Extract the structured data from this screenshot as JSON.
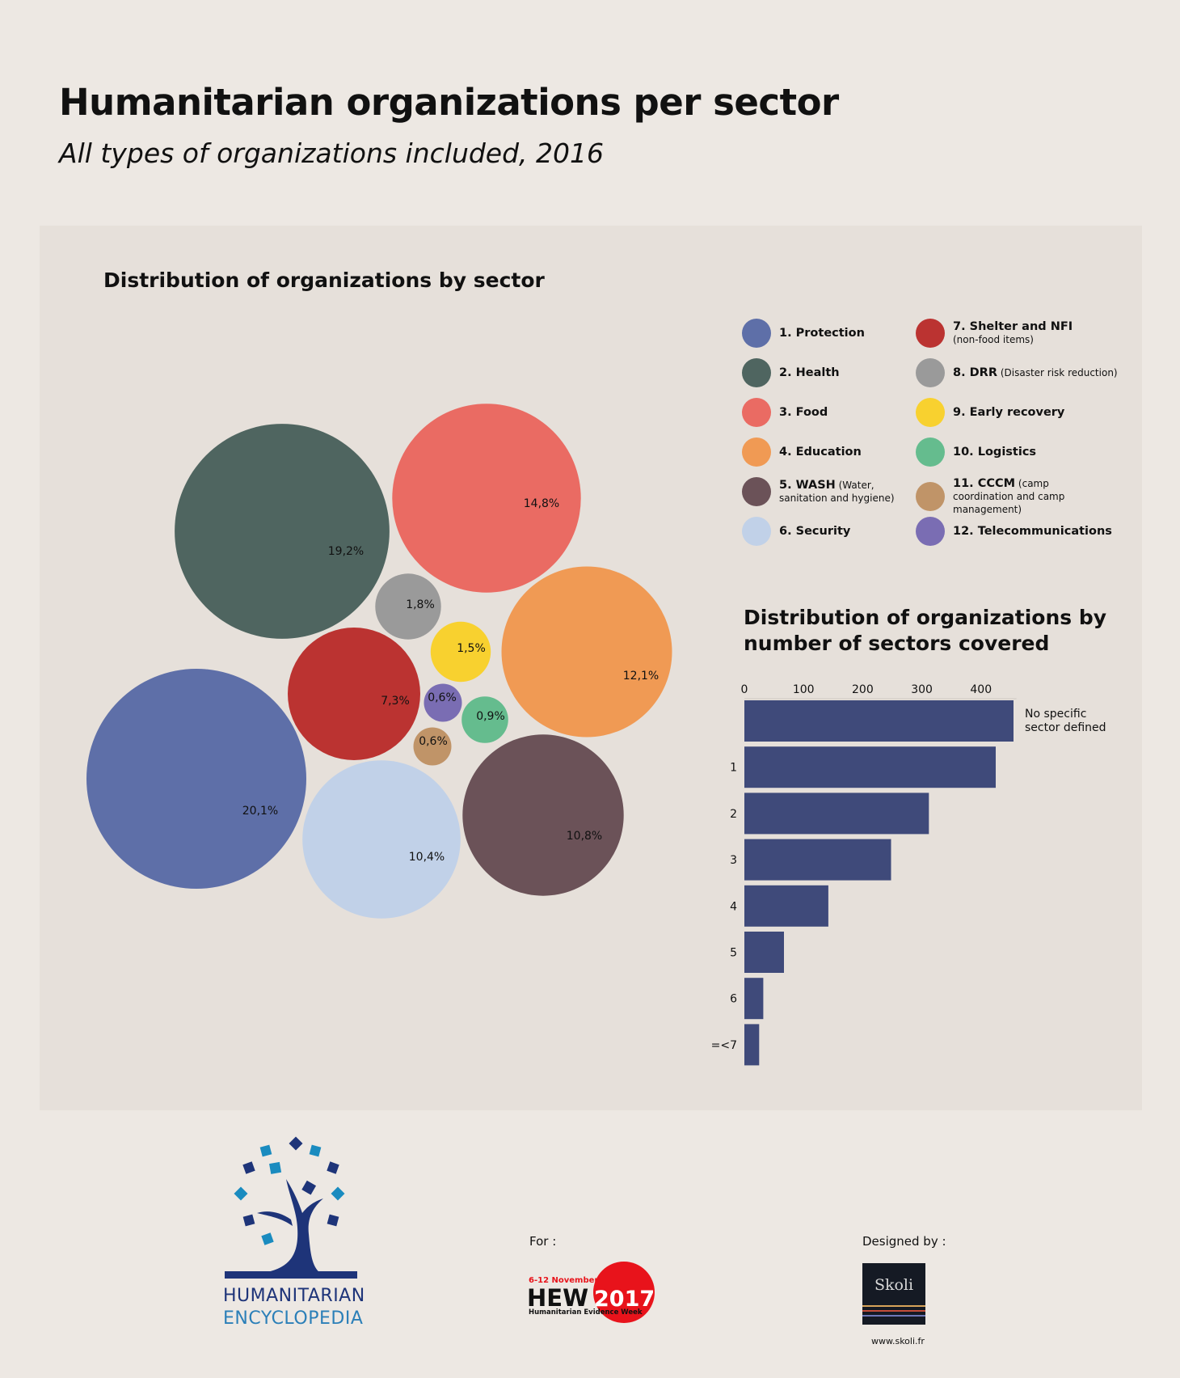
{
  "title": "Humanitarian organizations per sector",
  "subtitle": "All types of organizations included, 2016",
  "chart_data": [
    {
      "type": "bubble",
      "title": "Distribution of organizations by sector",
      "unit": "%",
      "series": [
        {
          "name": "1. Protection",
          "value": 20.1,
          "label": "20,1%",
          "color": "#5e6fa8"
        },
        {
          "name": "2. Health",
          "value": 19.2,
          "label": "19,2%",
          "color": "#4f6560"
        },
        {
          "name": "3. Food",
          "value": 14.8,
          "label": "14,8%",
          "color": "#ea6b63"
        },
        {
          "name": "4. Education",
          "value": 12.1,
          "label": "12,1%",
          "color": "#f09a54"
        },
        {
          "name": "5. WASH",
          "detail": "(Water, sanitation and hygiene)",
          "value": 10.8,
          "label": "10,8%",
          "color": "#6b5258"
        },
        {
          "name": "6. Security",
          "value": 10.4,
          "label": "10,4%",
          "color": "#c1d1e8"
        },
        {
          "name": "7. Shelter and NFI",
          "detail": "(non-food items)",
          "value": 7.3,
          "label": "7,3%",
          "color": "#bb3331"
        },
        {
          "name": "8. DRR",
          "detail": "(Disaster risk reduction)",
          "value": 1.8,
          "label": "1,8%",
          "color": "#9a9a9a"
        },
        {
          "name": "9. Early recovery",
          "value": 1.5,
          "label": "1,5%",
          "color": "#f8d12f"
        },
        {
          "name": "10. Logistics",
          "value": 0.9,
          "label": "0,9%",
          "color": "#65bc8e"
        },
        {
          "name": "11. CCCM",
          "detail": "(camp coordination and camp management)",
          "value": 0.6,
          "label": "0,6%",
          "color": "#c09468"
        },
        {
          "name": "12. Telecommunications",
          "value": 0.6,
          "label": "0,6%",
          "color": "#7a6db3"
        }
      ]
    },
    {
      "type": "bar",
      "orientation": "horizontal",
      "title": "Distribution of organizations by number of sectors covered",
      "categories": [
        "No specific sector defined",
        "1",
        "2",
        "3",
        "4",
        "5",
        "6",
        "=<7"
      ],
      "values": [
        455,
        425,
        312,
        248,
        142,
        67,
        32,
        25
      ],
      "xticks": [
        0,
        100,
        200,
        300,
        400
      ],
      "xlim": [
        0,
        460
      ],
      "axis_position": "top",
      "color": "#3f4a7a"
    }
  ],
  "footer": {
    "logo_line1": "HUMANITARIAN",
    "logo_line2": "ENCYCLOPEDIA",
    "for_label": "For :",
    "hew_dates": "6-12 November",
    "hew_name": "HEW",
    "hew_year": "2017",
    "hew_full": "Humanitarian Evidence Week",
    "designed_label": "Designed by :",
    "designer": "Skoli",
    "designer_url": "www.skoli.fr",
    "colors": {
      "logo_dark": "#1e3479",
      "logo_light": "#1a8bbf",
      "hew_red": "#e8131b"
    }
  }
}
